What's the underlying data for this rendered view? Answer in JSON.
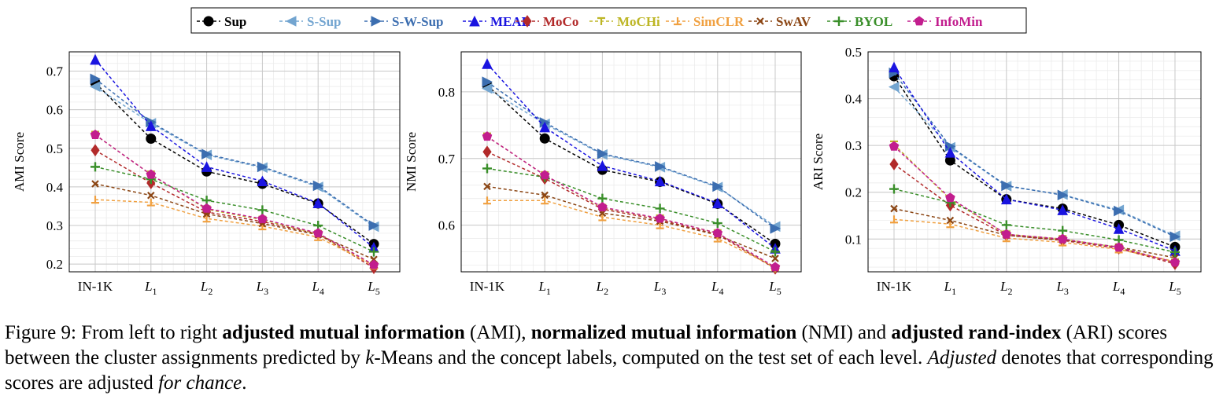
{
  "legend": [
    {
      "name": "Sup",
      "color": "#000000",
      "marker": "circle"
    },
    {
      "name": "S-Sup",
      "color": "#73a5d0",
      "marker": "triangle-left"
    },
    {
      "name": "S-W-Sup",
      "color": "#3c6eb0",
      "marker": "triangle-right"
    },
    {
      "name": "MEAL",
      "color": "#1a14e0",
      "marker": "triangle-up"
    },
    {
      "name": "MoCo",
      "color": "#b22a2a",
      "marker": "diamond"
    },
    {
      "name": "MoCHi",
      "color": "#bdb626",
      "marker": "tri-down"
    },
    {
      "name": "SimCLR",
      "color": "#f0a040",
      "marker": "tri-up"
    },
    {
      "name": "SwAV",
      "color": "#8b4513",
      "marker": "x"
    },
    {
      "name": "BYOL",
      "color": "#3a8f2a",
      "marker": "plus"
    },
    {
      "name": "InfoMin",
      "color": "#c21e8e",
      "marker": "pentagon"
    }
  ],
  "chart_data": [
    {
      "type": "line",
      "ylabel": "AMI Score",
      "categories": [
        "IN-1K",
        "L1",
        "L2",
        "L3",
        "L4",
        "L5"
      ],
      "ylim": [
        0.18,
        0.75
      ],
      "yticks": [
        0.2,
        0.3,
        0.4,
        0.5,
        0.6,
        0.7
      ],
      "grid": true,
      "series": [
        {
          "name": "Sup",
          "values": [
            0.67,
            0.525,
            0.44,
            0.408,
            0.357,
            0.252
          ]
        },
        {
          "name": "S-Sup",
          "values": [
            0.66,
            0.565,
            0.483,
            0.45,
            0.4,
            0.297
          ]
        },
        {
          "name": "S-W-Sup",
          "values": [
            0.68,
            0.568,
            0.485,
            0.452,
            0.403,
            0.3
          ]
        },
        {
          "name": "MEAL",
          "values": [
            0.73,
            0.558,
            0.452,
            0.415,
            0.358,
            0.243
          ]
        },
        {
          "name": "MoCo",
          "values": [
            0.495,
            0.41,
            0.335,
            0.31,
            0.278,
            0.19
          ]
        },
        {
          "name": "MoCHi",
          "values": [
            0.535,
            0.432,
            0.342,
            0.315,
            0.278,
            0.196
          ]
        },
        {
          "name": "SimCLR",
          "values": [
            0.367,
            0.36,
            0.318,
            0.298,
            0.27,
            0.196
          ]
        },
        {
          "name": "SwAV",
          "values": [
            0.408,
            0.378,
            0.33,
            0.305,
            0.276,
            0.212
          ]
        },
        {
          "name": "BYOL",
          "values": [
            0.452,
            0.42,
            0.365,
            0.34,
            0.3,
            0.232
          ]
        },
        {
          "name": "InfoMin",
          "values": [
            0.535,
            0.432,
            0.344,
            0.317,
            0.28,
            0.198
          ]
        }
      ]
    },
    {
      "type": "line",
      "ylabel": "NMI Score",
      "categories": [
        "IN-1K",
        "L1",
        "L2",
        "L3",
        "L4",
        "L5"
      ],
      "ylim": [
        0.53,
        0.86
      ],
      "yticks": [
        0.6,
        0.7,
        0.8
      ],
      "grid": true,
      "series": [
        {
          "name": "Sup",
          "values": [
            0.81,
            0.73,
            0.683,
            0.665,
            0.632,
            0.572
          ]
        },
        {
          "name": "S-Sup",
          "values": [
            0.805,
            0.752,
            0.706,
            0.687,
            0.657,
            0.598
          ]
        },
        {
          "name": "S-W-Sup",
          "values": [
            0.815,
            0.754,
            0.707,
            0.688,
            0.658,
            0.595
          ]
        },
        {
          "name": "MEAL",
          "values": [
            0.842,
            0.747,
            0.689,
            0.666,
            0.633,
            0.565
          ]
        },
        {
          "name": "MoCo",
          "values": [
            0.71,
            0.67,
            0.624,
            0.608,
            0.586,
            0.535
          ]
        },
        {
          "name": "MoCHi",
          "values": [
            0.733,
            0.675,
            0.626,
            0.61,
            0.588,
            0.535
          ]
        },
        {
          "name": "SimCLR",
          "values": [
            0.637,
            0.637,
            0.612,
            0.6,
            0.58,
            0.537
          ]
        },
        {
          "name": "SwAV",
          "values": [
            0.658,
            0.645,
            0.618,
            0.606,
            0.585,
            0.55
          ]
        },
        {
          "name": "BYOL",
          "values": [
            0.685,
            0.672,
            0.64,
            0.625,
            0.603,
            0.56
          ]
        },
        {
          "name": "InfoMin",
          "values": [
            0.733,
            0.675,
            0.627,
            0.61,
            0.588,
            0.537
          ]
        }
      ]
    },
    {
      "type": "line",
      "ylabel": "ARI Score",
      "categories": [
        "IN-1K",
        "L1",
        "L2",
        "L3",
        "L4",
        "L5"
      ],
      "ylim": [
        0.03,
        0.5
      ],
      "yticks": [
        0.1,
        0.2,
        0.3,
        0.4,
        0.5
      ],
      "grid": true,
      "series": [
        {
          "name": "Sup",
          "values": [
            0.448,
            0.268,
            0.185,
            0.165,
            0.13,
            0.083
          ]
        },
        {
          "name": "S-Sup",
          "values": [
            0.425,
            0.296,
            0.213,
            0.195,
            0.162,
            0.107
          ]
        },
        {
          "name": "S-W-Sup",
          "values": [
            0.455,
            0.298,
            0.214,
            0.194,
            0.16,
            0.105
          ]
        },
        {
          "name": "MEAL",
          "values": [
            0.467,
            0.285,
            0.185,
            0.162,
            0.122,
            0.075
          ]
        },
        {
          "name": "MoCo",
          "values": [
            0.26,
            0.172,
            0.108,
            0.097,
            0.08,
            0.047
          ]
        },
        {
          "name": "MoCHi",
          "values": [
            0.302,
            0.185,
            0.11,
            0.1,
            0.082,
            0.05
          ]
        },
        {
          "name": "SimCLR",
          "values": [
            0.142,
            0.132,
            0.102,
            0.093,
            0.078,
            0.052
          ]
        },
        {
          "name": "SwAV",
          "values": [
            0.165,
            0.14,
            0.108,
            0.098,
            0.083,
            0.06
          ]
        },
        {
          "name": "BYOL",
          "values": [
            0.207,
            0.178,
            0.13,
            0.118,
            0.098,
            0.072
          ]
        },
        {
          "name": "InfoMin",
          "values": [
            0.298,
            0.188,
            0.11,
            0.1,
            0.082,
            0.05
          ]
        }
      ]
    }
  ],
  "caption": {
    "prefix": "Figure 9: From left to right ",
    "t1": "adjusted mutual information",
    "m1": " (AMI), ",
    "t2": "normalized mutual information",
    "m2": " (NMI) and ",
    "t3": "adjusted rand-index",
    "m3": " (ARI) scores between the cluster assignments predicted by ",
    "k": "k",
    "m4": "-Means and the concept labels, computed on the test set of each level. ",
    "adj": "Adjusted",
    "m5": " denotes that corresponding scores are adjusted ",
    "fc": "for chance",
    "end": "."
  }
}
